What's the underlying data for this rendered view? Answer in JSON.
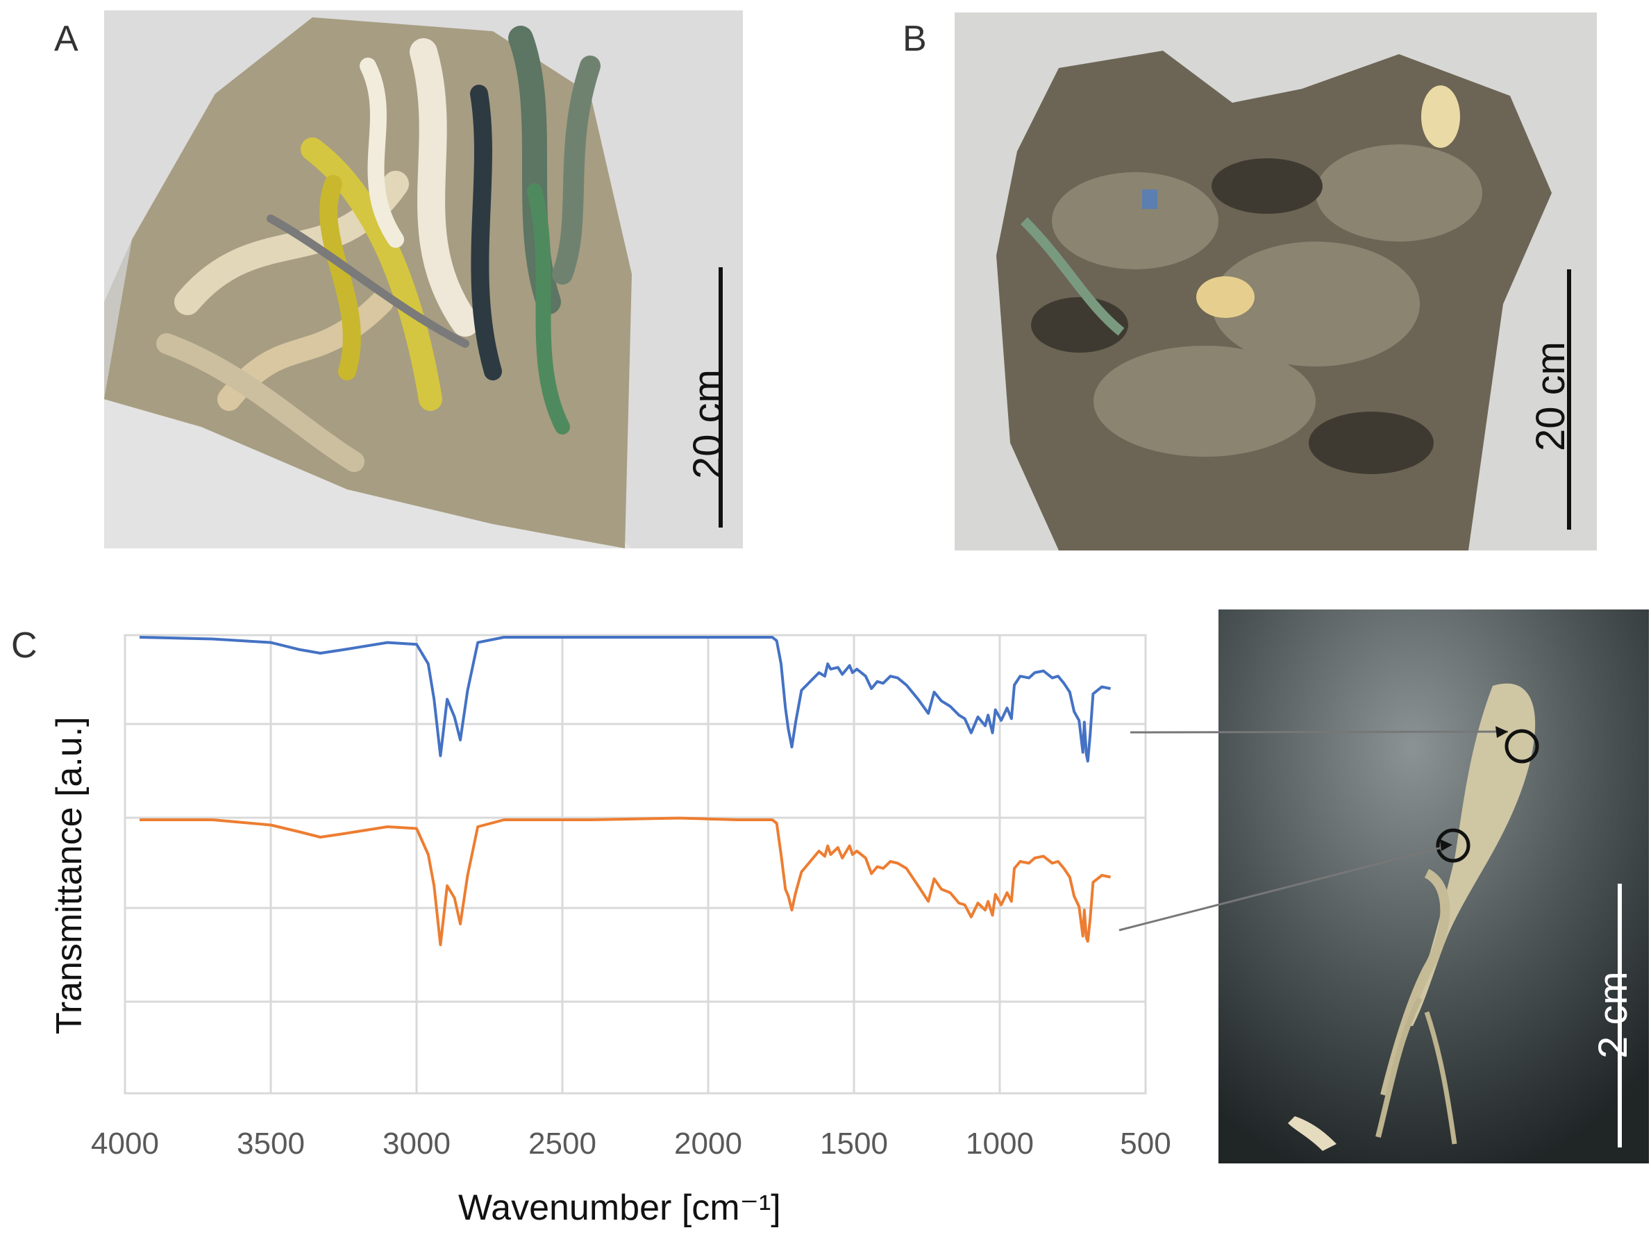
{
  "panels": {
    "a": {
      "label": "A",
      "scale_text": "20 cm"
    },
    "b": {
      "label": "B",
      "scale_text": "20 cm"
    },
    "c": {
      "label": "C",
      "scale_text": "2 cm"
    }
  },
  "colors": {
    "series_top": "#4472C4",
    "series_bottom": "#ED7D31",
    "grid": "#d9d9d9",
    "tick_label": "#595959"
  },
  "chart_data": {
    "type": "line",
    "title": "",
    "xlabel": "Wavenumber [cm⁻¹]",
    "ylabel": "Transmittance [a.u.]",
    "xlim": [
      4000,
      500
    ],
    "x_reversed": true,
    "x_ticks": [
      "4000",
      "3500",
      "3000",
      "2500",
      "2000",
      "1500",
      "1000",
      "500"
    ],
    "y_ticks_labeled": false,
    "grid": true,
    "legend": "none",
    "series": [
      {
        "color": "#4472C4",
        "x": [
          3950,
          3700,
          3500,
          3400,
          3330,
          3250,
          3100,
          3000,
          2960,
          2940,
          2918,
          2895,
          2870,
          2850,
          2825,
          2790,
          2700,
          2400,
          2100,
          1900,
          1780,
          1765,
          1750,
          1735,
          1725,
          1713,
          1700,
          1680,
          1620,
          1600,
          1590,
          1580,
          1555,
          1540,
          1515,
          1505,
          1490,
          1460,
          1440,
          1420,
          1400,
          1375,
          1350,
          1320,
          1280,
          1245,
          1225,
          1200,
          1170,
          1140,
          1120,
          1098,
          1075,
          1050,
          1040,
          1025,
          1015,
          995,
          975,
          960,
          950,
          930,
          900,
          880,
          850,
          820,
          800,
          780,
          760,
          745,
          728,
          715,
          710,
          703,
          698,
          690,
          680,
          650,
          620
        ],
        "y": [
          100,
          99,
          97,
          93,
          91,
          93,
          97,
          96,
          85,
          65,
          33,
          65,
          55,
          42,
          70,
          97,
          100,
          100,
          100,
          100,
          100,
          98,
          85,
          60,
          48,
          38,
          52,
          70,
          80,
          78,
          85,
          82,
          83,
          79,
          84,
          80,
          82,
          78,
          71,
          75,
          74,
          78,
          77,
          73,
          65,
          57,
          69,
          64,
          61,
          56,
          54,
          46,
          55,
          50,
          56,
          46,
          59,
          53,
          60,
          54,
          73,
          78,
          77,
          80,
          81,
          77,
          78,
          74,
          69,
          58,
          53,
          35,
          52,
          34,
          30,
          45,
          68,
          72,
          71
        ]
      },
      {
        "color": "#ED7D31",
        "x": [
          3950,
          3700,
          3500,
          3400,
          3330,
          3250,
          3100,
          3000,
          2960,
          2940,
          2918,
          2895,
          2870,
          2850,
          2825,
          2790,
          2700,
          2400,
          2100,
          1900,
          1780,
          1765,
          1750,
          1735,
          1725,
          1713,
          1700,
          1680,
          1620,
          1600,
          1590,
          1580,
          1555,
          1540,
          1515,
          1505,
          1490,
          1460,
          1440,
          1420,
          1400,
          1375,
          1350,
          1320,
          1280,
          1245,
          1225,
          1200,
          1170,
          1140,
          1120,
          1098,
          1075,
          1050,
          1040,
          1025,
          1015,
          995,
          975,
          960,
          950,
          930,
          900,
          880,
          850,
          820,
          800,
          780,
          760,
          745,
          728,
          715,
          710,
          703,
          698,
          690,
          680,
          650,
          620
        ],
        "y": [
          100,
          100,
          97,
          93,
          90,
          92,
          96,
          95,
          80,
          62,
          28,
          62,
          55,
          40,
          68,
          96,
          100,
          100,
          101,
          100,
          100,
          98,
          80,
          60,
          56,
          48,
          58,
          70,
          82,
          79,
          85,
          80,
          84,
          78,
          85,
          80,
          82,
          78,
          69,
          73,
          72,
          76,
          75,
          72,
          62,
          53,
          66,
          60,
          58,
          52,
          51,
          44,
          52,
          48,
          53,
          45,
          57,
          51,
          58,
          53,
          72,
          76,
          75,
          78,
          79,
          75,
          76,
          72,
          67,
          56,
          50,
          33,
          48,
          32,
          30,
          43,
          64,
          68,
          67
        ]
      }
    ]
  }
}
